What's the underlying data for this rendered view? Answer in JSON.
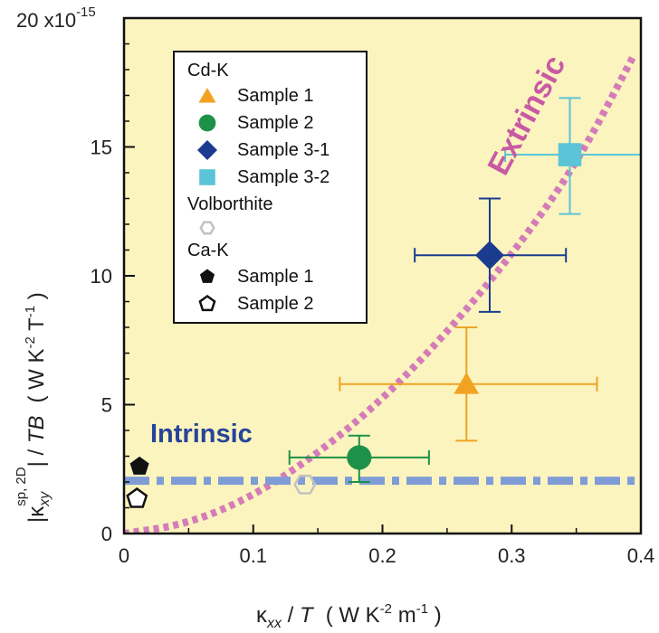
{
  "chart_data": {
    "type": "scatter",
    "xlabel": {
      "base": "κ",
      "sub": "xx",
      "mid": " / ",
      "var": "T",
      "units_open": "( W K",
      "sup": "-2",
      "units_mid": " m",
      "sup2": "-1",
      "units_close": " )"
    },
    "ylabel": {
      "left": "|κ",
      "sub": "xy",
      "sup": "sp, 2D",
      "mid": "| / ",
      "var": "TB",
      "units_open": "( W K",
      "usup": "-2",
      "units_mid": " T",
      "usup2": "-1",
      "units_close": " )"
    },
    "xlim": [
      0,
      0.4
    ],
    "ylim": [
      0,
      20
    ],
    "x_ticks": [
      "0",
      "0.1",
      "0.2",
      "0.3",
      "0.4"
    ],
    "x_tick_values": [
      0,
      0.1,
      0.2,
      0.3,
      0.4
    ],
    "y_ticks": [
      "0",
      "5",
      "10",
      "15"
    ],
    "y_tick_values": [
      0,
      5,
      10,
      15
    ],
    "y_top_label": "20 x10",
    "y_top_exp": "-15",
    "background": "#fbf4bf",
    "series": [
      {
        "name": "Sample 1",
        "group": "Cd-K",
        "marker": "triangle",
        "color": "#f2a222",
        "x": 0.265,
        "y": 5.8,
        "xerr": [
          0.167,
          0.366
        ],
        "yerr": [
          3.6,
          8.0
        ]
      },
      {
        "name": "Sample 2",
        "group": "Cd-K",
        "marker": "circle",
        "color": "#1e9148",
        "x": 0.182,
        "y": 2.95,
        "xerr": [
          0.128,
          0.236
        ],
        "yerr": [
          2.0,
          3.8
        ]
      },
      {
        "name": "Sample 3-1",
        "group": "Cd-K",
        "marker": "diamond",
        "color": "#1b3c8e",
        "x": 0.283,
        "y": 10.8,
        "xerr": [
          0.225,
          0.342
        ],
        "yerr": [
          8.6,
          13.0
        ]
      },
      {
        "name": "Sample 3-2",
        "group": "Cd-K",
        "marker": "square",
        "color": "#5bc4d6",
        "x": 0.345,
        "y": 14.7,
        "xerr": [
          0.295,
          0.4
        ],
        "yerr": [
          12.4,
          16.9
        ]
      },
      {
        "name": "Volborthite",
        "group": "Volborthite",
        "marker": "hexagon-open",
        "color": "#c2c2c2",
        "x": 0.14,
        "y": 1.9
      },
      {
        "name": "Sample 1",
        "group": "Ca-K",
        "marker": "pentagon-filled",
        "color": "#111111",
        "x": 0.012,
        "y": 2.6
      },
      {
        "name": "Sample 2",
        "group": "Ca-K",
        "marker": "pentagon-open",
        "color": "#111111",
        "x": 0.01,
        "y": 1.35
      }
    ],
    "lines": [
      {
        "name": "Extrinsic",
        "style": "dotted",
        "color": "#d47cb8",
        "kind": "curve",
        "points": [
          [
            0,
            0
          ],
          [
            0.05,
            0.38
          ],
          [
            0.1,
            1.45
          ],
          [
            0.15,
            3.1
          ],
          [
            0.2,
            5.2
          ],
          [
            0.25,
            7.8
          ],
          [
            0.3,
            10.8
          ],
          [
            0.35,
            14.3
          ],
          [
            0.395,
            18.6
          ]
        ]
      },
      {
        "name": "Intrinsic",
        "style": "dash-dot",
        "color": "#7f9cd6",
        "kind": "horizontal",
        "y": 2.05
      }
    ],
    "annotations": [
      {
        "text": "Extrinsic",
        "color": "#c85aa3"
      },
      {
        "text": "Intrinsic",
        "color": "#26449a"
      }
    ],
    "legend": {
      "placement": "top-left",
      "groups": [
        {
          "title": "Cd-K",
          "items": [
            {
              "label": "Sample 1",
              "marker": "triangle",
              "color": "#f2a222"
            },
            {
              "label": "Sample 2",
              "marker": "circle",
              "color": "#1e9148"
            },
            {
              "label": "Sample 3-1",
              "marker": "diamond",
              "color": "#1b3c8e"
            },
            {
              "label": "Sample 3-2",
              "marker": "square",
              "color": "#5bc4d6"
            }
          ]
        },
        {
          "title": "Volborthite",
          "items": [
            {
              "label": "",
              "marker": "hexagon-open",
              "color": "#c2c2c2"
            }
          ]
        },
        {
          "title": "Ca-K",
          "items": [
            {
              "label": "Sample 1",
              "marker": "pentagon-filled",
              "color": "#111111"
            },
            {
              "label": "Sample 2",
              "marker": "pentagon-open",
              "color": "#111111"
            }
          ]
        }
      ]
    }
  }
}
